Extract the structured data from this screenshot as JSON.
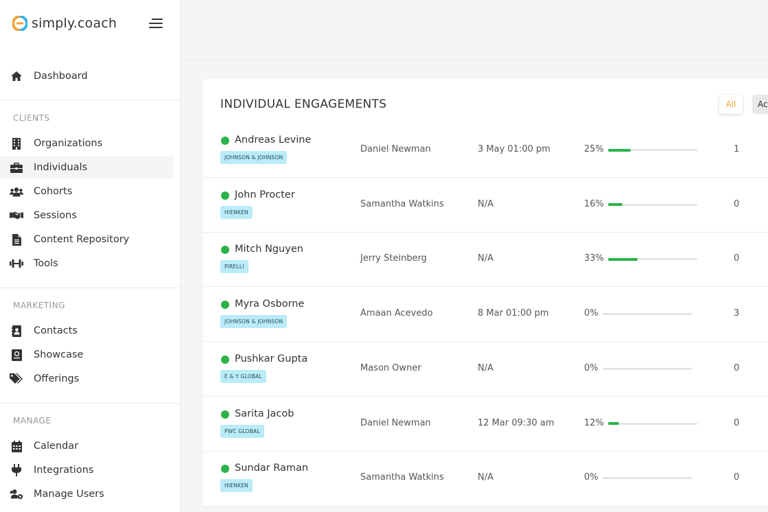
{
  "app": {
    "name": "simply.coach"
  },
  "sidebar": {
    "dashboard": "Dashboard",
    "sections": [
      {
        "label": "CLIENTS",
        "items": [
          "Organizations",
          "Individuals",
          "Cohorts",
          "Sessions",
          "Content Repository",
          "Tools"
        ]
      },
      {
        "label": "MARKETING",
        "items": [
          "Contacts",
          "Showcase",
          "Offerings"
        ]
      },
      {
        "label": "MANAGE",
        "items": [
          "Calendar",
          "Integrations",
          "Manage Users"
        ]
      }
    ],
    "active_item": "Individuals"
  },
  "main": {
    "title": "INDIVIDUAL ENGAGEMENTS",
    "filters": {
      "all": "All",
      "ac": "Ac"
    },
    "rows": [
      {
        "name": "Andreas Levine",
        "org": "JOHNSON & JOHNSON",
        "coach": "Daniel Newman",
        "next": "3 May 01:00 pm",
        "progress": "25%",
        "progress_value": 25,
        "count": "1"
      },
      {
        "name": "John Procter",
        "org": "HIENKEN",
        "coach": "Samantha Watkins",
        "next": "N/A",
        "progress": "16%",
        "progress_value": 16,
        "count": "0"
      },
      {
        "name": "Mitch Nguyen",
        "org": "PIRELLI",
        "coach": "Jerry Steinberg",
        "next": "N/A",
        "progress": "33%",
        "progress_value": 33,
        "count": "0"
      },
      {
        "name": "Myra Osborne",
        "org": "JOHNSON & JOHNSON",
        "coach": "Amaan Acevedo",
        "next": "8 Mar 01:00 pm",
        "progress": "0%",
        "progress_value": 0,
        "count": "3"
      },
      {
        "name": "Pushkar Gupta",
        "org": "E & Y GLOBAL",
        "coach": "Mason Owner",
        "next": "N/A",
        "progress": "0%",
        "progress_value": 0,
        "count": "0"
      },
      {
        "name": "Sarita Jacob",
        "org": "PWC GLOBAL",
        "coach": "Daniel Newman",
        "next": "12 Mar 09:30 am",
        "progress": "12%",
        "progress_value": 12,
        "count": "0"
      },
      {
        "name": "Sundar Raman",
        "org": "HIENKEN",
        "coach": "Samantha Watkins",
        "next": "N/A",
        "progress": "0%",
        "progress_value": 0,
        "count": "0"
      }
    ]
  },
  "colors": {
    "accent": "#f0a43a",
    "status": "#2bb34a",
    "badge": "#b9ebf8"
  }
}
